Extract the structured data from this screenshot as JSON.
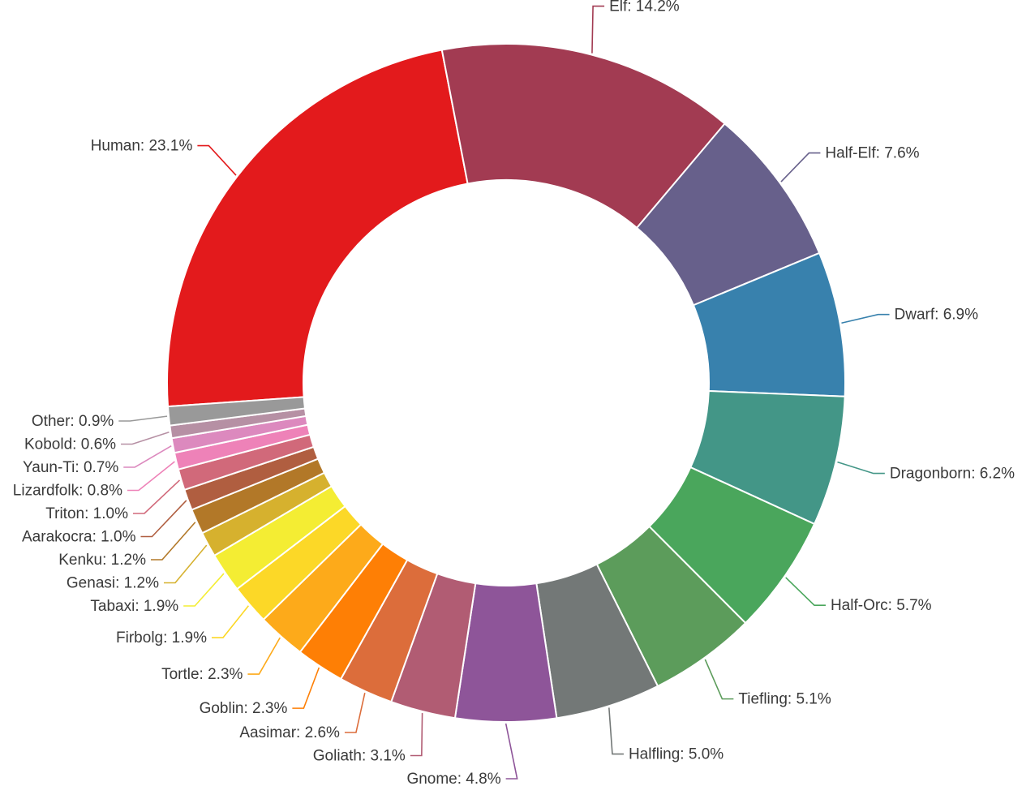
{
  "chart_data": {
    "type": "pie",
    "donut": true,
    "label_format": "{name}: {value}%",
    "slices": [
      {
        "name": "Human",
        "value": 23.1,
        "color": "#e31a1c"
      },
      {
        "name": "Elf",
        "value": 14.2,
        "color": "#a23b52"
      },
      {
        "name": "Half-Elf",
        "value": 7.6,
        "color": "#67608b"
      },
      {
        "name": "Dwarf",
        "value": 6.9,
        "color": "#3881ad"
      },
      {
        "name": "Dragonborn",
        "value": 6.2,
        "color": "#439687"
      },
      {
        "name": "Half-Orc",
        "value": 5.7,
        "color": "#4aa65c"
      },
      {
        "name": "Tiefling",
        "value": 5.1,
        "color": "#5c9c5b"
      },
      {
        "name": "Halfling",
        "value": 5.0,
        "color": "#737877"
      },
      {
        "name": "Gnome",
        "value": 4.8,
        "color": "#8e5599"
      },
      {
        "name": "Goliath",
        "value": 3.1,
        "color": "#b15c73"
      },
      {
        "name": "Aasimar",
        "value": 2.6,
        "color": "#dc6d3b"
      },
      {
        "name": "Goblin",
        "value": 2.3,
        "color": "#fe7f05"
      },
      {
        "name": "Tortle",
        "value": 2.3,
        "color": "#fdaa1a"
      },
      {
        "name": "Firbolg",
        "value": 1.9,
        "color": "#fcd827"
      },
      {
        "name": "Tabaxi",
        "value": 1.9,
        "color": "#f4ed33"
      },
      {
        "name": "Genasi",
        "value": 1.2,
        "color": "#d6b12e"
      },
      {
        "name": "Kenku",
        "value": 1.2,
        "color": "#b27828"
      },
      {
        "name": "Aarakocra",
        "value": 1.0,
        "color": "#b05e40"
      },
      {
        "name": "Triton",
        "value": 1.0,
        "color": "#d1697a"
      },
      {
        "name": "Lizardfolk",
        "value": 0.8,
        "color": "#ee82b8"
      },
      {
        "name": "Yaun-Ti",
        "value": 0.7,
        "color": "#dc89be"
      },
      {
        "name": "Kobold",
        "value": 0.6,
        "color": "#b690a4"
      },
      {
        "name": "Other",
        "value": 0.9,
        "color": "#999999"
      }
    ]
  }
}
